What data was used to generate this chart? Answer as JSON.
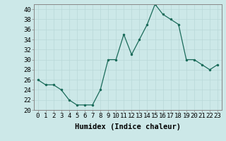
{
  "xlabel": "Humidex (Indice chaleur)",
  "x": [
    0,
    1,
    2,
    3,
    4,
    5,
    6,
    7,
    8,
    9,
    10,
    11,
    12,
    13,
    14,
    15,
    16,
    17,
    18,
    19,
    20,
    21,
    22,
    23
  ],
  "y": [
    26,
    25,
    25,
    24,
    22,
    21,
    21,
    21,
    24,
    30,
    30,
    35,
    31,
    34,
    37,
    41,
    39,
    38,
    37,
    30,
    30,
    29,
    28,
    29
  ],
  "line_color": "#1a6b5a",
  "marker_size": 3,
  "bg_color": "#cce8e8",
  "grid_color": "#b8d8d8",
  "ylim": [
    20,
    41
  ],
  "yticks": [
    20,
    22,
    24,
    26,
    28,
    30,
    32,
    34,
    36,
    38,
    40
  ],
  "xticks": [
    0,
    1,
    2,
    3,
    4,
    5,
    6,
    7,
    8,
    9,
    10,
    11,
    12,
    13,
    14,
    15,
    16,
    17,
    18,
    19,
    20,
    21,
    22,
    23
  ],
  "tick_fontsize": 6.5,
  "label_fontsize": 7.5
}
